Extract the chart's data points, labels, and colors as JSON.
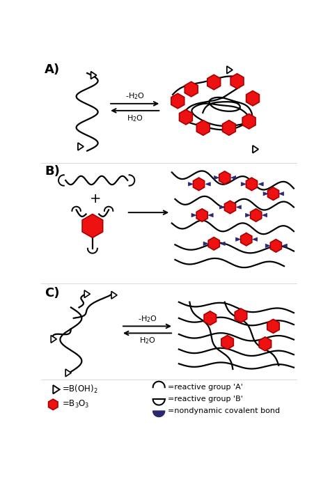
{
  "bg_color": "#ffffff",
  "label_A": "A)",
  "label_B": "B)",
  "label_C": "C)",
  "red_hex_color": "#ee1111",
  "red_hex_edge": "#cc0000",
  "navy_color": "#2a2870",
  "black": "#000000",
  "water_forward": "-H$_2$O",
  "water_backward": "H$_2$O",
  "fig_w": 4.74,
  "fig_h": 6.95,
  "dpi": 100
}
